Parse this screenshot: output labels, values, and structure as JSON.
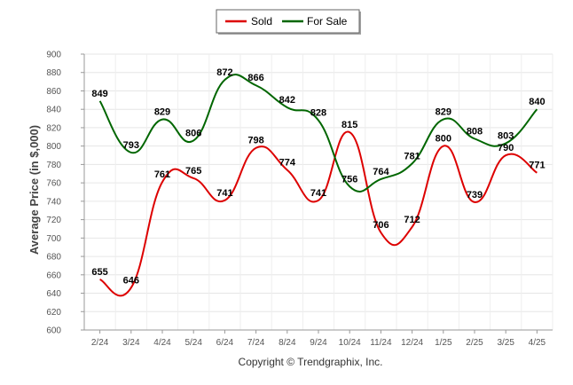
{
  "chart_data": {
    "type": "line",
    "categories": [
      "2/24",
      "3/24",
      "4/24",
      "5/24",
      "6/24",
      "7/24",
      "8/24",
      "9/24",
      "10/24",
      "11/24",
      "12/24",
      "1/25",
      "2/25",
      "3/25",
      "4/25"
    ],
    "series": [
      {
        "name": "Sold",
        "color": "#dd0000",
        "values": [
          655,
          646,
          761,
          765,
          741,
          798,
          774,
          741,
          815,
          706,
          712,
          800,
          739,
          790,
          771
        ]
      },
      {
        "name": "For Sale",
        "color": "#006600",
        "values": [
          849,
          793,
          829,
          806,
          872,
          866,
          842,
          828,
          756,
          764,
          781,
          829,
          808,
          803,
          840
        ]
      }
    ],
    "ylabel": "Average Price (in $,000)",
    "ylim": [
      600,
      900
    ],
    "yticks": [
      600,
      620,
      640,
      660,
      680,
      700,
      720,
      740,
      760,
      780,
      800,
      820,
      840,
      860,
      880,
      900
    ],
    "grid": true,
    "legend_position": "top-center",
    "footer": "Copyright © Trendgraphix, Inc."
  }
}
